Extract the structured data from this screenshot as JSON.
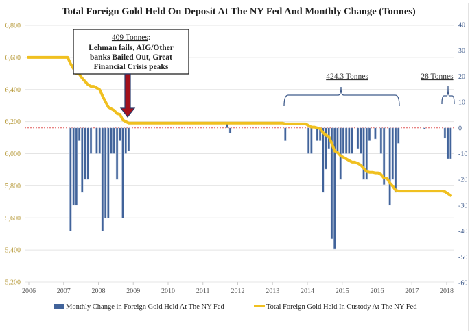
{
  "chart_data": {
    "type": "bar+line",
    "title": "Total Foreign Gold Held On Deposit At The NY Fed And Monthly Change (Tonnes)",
    "left_axis": {
      "ticks": [
        "6,800",
        "6,600",
        "6,400",
        "6,200",
        "6,000",
        "5,800",
        "5,600",
        "5,400",
        "5,200"
      ],
      "range": [
        5200,
        6800
      ],
      "color": "#b79a3a"
    },
    "right_axis": {
      "ticks": [
        "40",
        "30",
        "20",
        "10",
        "0",
        "-10",
        "-20",
        "-30",
        "-40",
        "-50",
        "-60"
      ],
      "range": [
        -60,
        40
      ],
      "color": "#3e5a8a"
    },
    "x_ticks": [
      "2006",
      "2007",
      "2008",
      "2009",
      "2010",
      "2011",
      "2012",
      "2013",
      "2014",
      "2015",
      "2016",
      "2017",
      "2018"
    ],
    "grid": true,
    "legend_position": "bottom",
    "series": [
      {
        "name": "Monthly Change in Foreign Gold Held At The NY Fed",
        "type": "bar",
        "axis": "right",
        "color": "#41639a",
        "points": [
          [
            "2007-03",
            -40
          ],
          [
            "2007-04",
            -30
          ],
          [
            "2007-05",
            -30
          ],
          [
            "2007-06",
            -5
          ],
          [
            "2007-07",
            -25
          ],
          [
            "2007-08",
            -20
          ],
          [
            "2007-09",
            -20
          ],
          [
            "2007-10",
            -10
          ],
          [
            "2007-12",
            -10
          ],
          [
            "2008-01",
            -10
          ],
          [
            "2008-02",
            -40
          ],
          [
            "2008-03",
            -35
          ],
          [
            "2008-04",
            -35
          ],
          [
            "2008-05",
            -10
          ],
          [
            "2008-06",
            -10
          ],
          [
            "2008-07",
            -20
          ],
          [
            "2008-08",
            -5
          ],
          [
            "2008-09",
            -35
          ],
          [
            "2008-10",
            -10
          ],
          [
            "2008-11",
            -9
          ],
          [
            "2011-09",
            2
          ],
          [
            "2011-10",
            -2
          ],
          [
            "2013-05",
            -5
          ],
          [
            "2014-01",
            -10
          ],
          [
            "2014-02",
            -10
          ],
          [
            "2014-04",
            -5
          ],
          [
            "2014-05",
            -5
          ],
          [
            "2014-06",
            -25
          ],
          [
            "2014-07",
            -16
          ],
          [
            "2014-08",
            -8
          ],
          [
            "2014-09",
            -43
          ],
          [
            "2014-10",
            -47
          ],
          [
            "2014-11",
            -10
          ],
          [
            "2014-12",
            -20
          ],
          [
            "2015-01",
            -10
          ],
          [
            "2015-02",
            -10
          ],
          [
            "2015-03",
            -10
          ],
          [
            "2015-04",
            -10
          ],
          [
            "2015-06",
            -8
          ],
          [
            "2015-07",
            -10
          ],
          [
            "2015-08",
            -20
          ],
          [
            "2015-09",
            -20
          ],
          [
            "2015-10",
            -5
          ],
          [
            "2015-12",
            -4.3
          ],
          [
            "2016-02",
            -10
          ],
          [
            "2016-03",
            -22
          ],
          [
            "2016-05",
            -30
          ],
          [
            "2016-06",
            -20
          ],
          [
            "2016-07",
            -25
          ],
          [
            "2016-08",
            -6
          ],
          [
            "2017-05",
            -0.5
          ],
          [
            "2017-12",
            -4
          ],
          [
            "2018-01",
            -12
          ],
          [
            "2018-02",
            -12
          ]
        ]
      },
      {
        "name": "Total Foreign Gold Held In Custody At The NY Fed",
        "type": "line",
        "axis": "left",
        "color": "#f0c020",
        "points": [
          [
            "2006-01",
            6600
          ],
          [
            "2007-02",
            6600
          ],
          [
            "2007-03",
            6560
          ],
          [
            "2007-04",
            6530
          ],
          [
            "2007-05",
            6500
          ],
          [
            "2007-06",
            6495
          ],
          [
            "2007-07",
            6470
          ],
          [
            "2007-08",
            6450
          ],
          [
            "2007-09",
            6430
          ],
          [
            "2007-10",
            6420
          ],
          [
            "2007-11",
            6420
          ],
          [
            "2007-12",
            6410
          ],
          [
            "2008-01",
            6400
          ],
          [
            "2008-02",
            6360
          ],
          [
            "2008-03",
            6325
          ],
          [
            "2008-04",
            6290
          ],
          [
            "2008-05",
            6280
          ],
          [
            "2008-06",
            6270
          ],
          [
            "2008-07",
            6250
          ],
          [
            "2008-08",
            6245
          ],
          [
            "2008-09",
            6210
          ],
          [
            "2008-10",
            6200
          ],
          [
            "2008-11",
            6191
          ],
          [
            "2013-04",
            6191
          ],
          [
            "2013-05",
            6186
          ],
          [
            "2013-12",
            6186
          ],
          [
            "2014-01",
            6176
          ],
          [
            "2014-02",
            6166
          ],
          [
            "2014-03",
            6166
          ],
          [
            "2014-04",
            6161
          ],
          [
            "2014-05",
            6156
          ],
          [
            "2014-06",
            6131
          ],
          [
            "2014-07",
            6115
          ],
          [
            "2014-08",
            6107
          ],
          [
            "2014-09",
            6064
          ],
          [
            "2014-10",
            6017
          ],
          [
            "2014-11",
            6007
          ],
          [
            "2014-12",
            5987
          ],
          [
            "2015-01",
            5977
          ],
          [
            "2015-02",
            5967
          ],
          [
            "2015-03",
            5957
          ],
          [
            "2015-04",
            5947
          ],
          [
            "2015-05",
            5947
          ],
          [
            "2015-06",
            5939
          ],
          [
            "2015-07",
            5929
          ],
          [
            "2015-08",
            5909
          ],
          [
            "2015-09",
            5889
          ],
          [
            "2015-10",
            5884
          ],
          [
            "2015-11",
            5884
          ],
          [
            "2015-12",
            5880
          ],
          [
            "2016-01",
            5880
          ],
          [
            "2016-02",
            5870
          ],
          [
            "2016-03",
            5848
          ],
          [
            "2016-04",
            5848
          ],
          [
            "2016-05",
            5818
          ],
          [
            "2016-06",
            5798
          ],
          [
            "2016-07",
            5773
          ],
          [
            "2016-08",
            5767
          ],
          [
            "2017-11",
            5767
          ],
          [
            "2017-12",
            5763
          ],
          [
            "2018-01",
            5751
          ],
          [
            "2018-02",
            5739
          ]
        ]
      }
    ],
    "annotations": {
      "crisis_heading": "409 Tonnes",
      "crisis_heading_suffix": ":",
      "crisis_lines": [
        "Lehman fails, AIG/Other",
        "banks Bailed Out, Great",
        "Financial Crisis peaks"
      ],
      "brace_2013_2016": "424.3 Tonnes",
      "brace_2018": "28 Tonnes"
    },
    "colors": {
      "zero_line": "#e05a5a",
      "arrow_fill": "#a3101c",
      "arrow_outline": "#2a3a6a"
    }
  }
}
